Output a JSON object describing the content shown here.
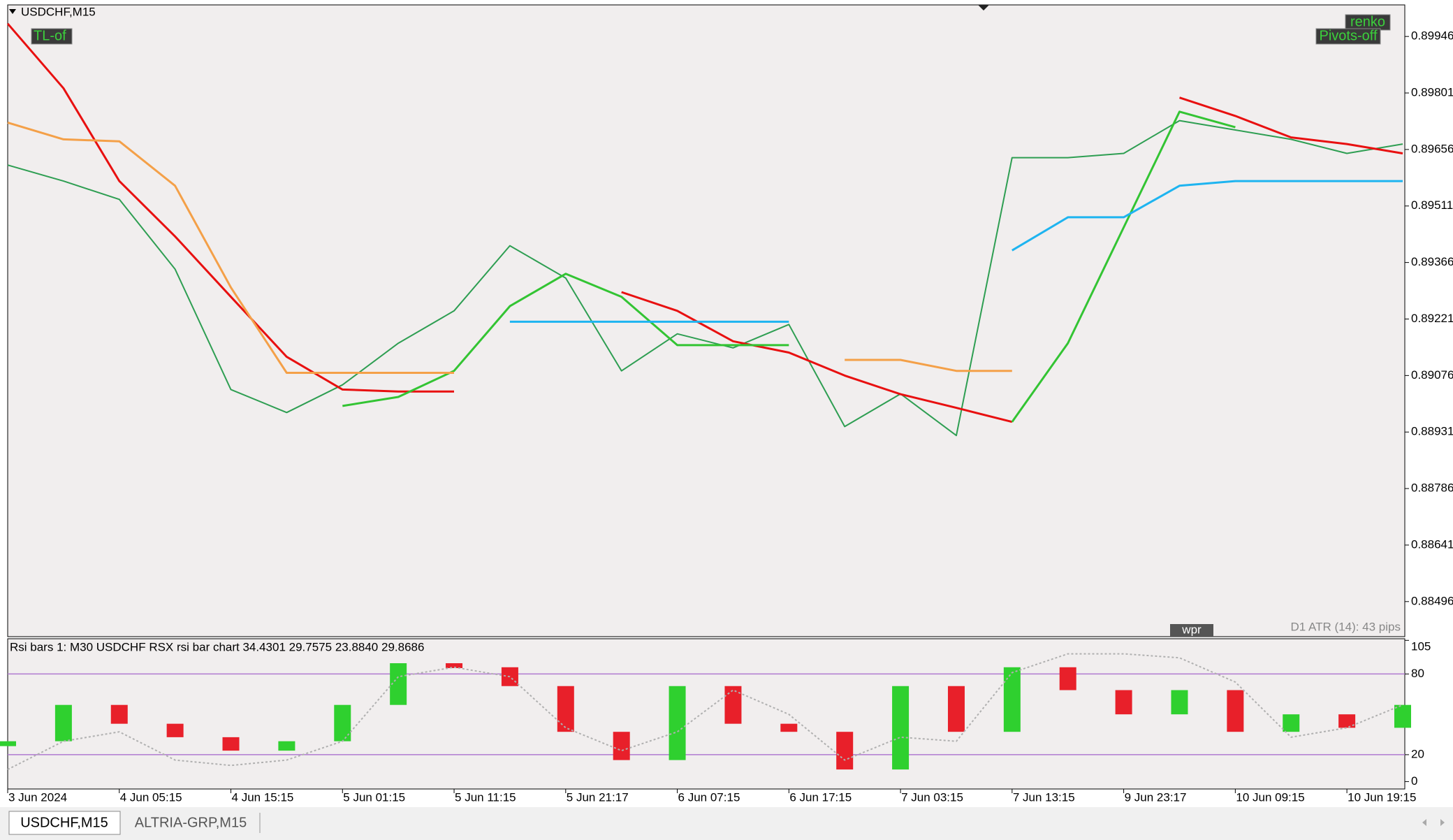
{
  "window": {
    "tabs": [
      "USDCHF,M15",
      "ALTRIA-GRP,M15"
    ],
    "buttons": {
      "tl": "TL-of",
      "renko": "renko",
      "pivots": "Pivots-off",
      "wpr": "wpr"
    },
    "atr": "D1 ATR (14): 43 pips"
  },
  "chart_data": [
    {
      "type": "line",
      "title": "USDCHF,M15",
      "series": [
        {
          "color": "#2e9e52",
          "values": [
            0.89616,
            0.89575,
            0.89528,
            0.89349,
            0.8904,
            0.88981,
            0.89052,
            0.89159,
            0.89242,
            0.89409,
            0.89326,
            0.89088,
            0.89183,
            0.89147,
            0.89207,
            0.88945,
            0.89029,
            0.88922,
            0.89635,
            0.89635,
            0.89646,
            0.8973,
            0.89706,
            0.89682,
            0.89646,
            0.8967
          ]
        },
        {
          "color": "#e81010",
          "values": [
            0.89979,
            0.89813,
            0.89575,
            0.89433,
            0.89278,
            0.89124,
            0.8904,
            0.89035,
            0.89035,
            null,
            null,
            0.8929,
            0.89242,
            0.89164,
            0.89135,
            0.89076,
            0.89028,
            0.88993,
            0.88957,
            null,
            null,
            0.89789,
            0.89742,
            0.89687,
            0.8967,
            0.89646
          ]
        },
        {
          "color": "#33c433",
          "values": [
            null,
            null,
            null,
            null,
            null,
            null,
            0.88998,
            0.89021,
            0.89088,
            0.89254,
            0.89337,
            0.89278,
            0.89154,
            0.89154,
            0.89154,
            null,
            null,
            null,
            0.88957,
            0.89159,
            0.89456,
            0.89753,
            0.89713,
            null,
            null,
            null
          ]
        },
        {
          "color": "#f4a048",
          "values": [
            0.89725,
            0.89682,
            0.89677,
            0.89563,
            0.89302,
            0.89083,
            0.89083,
            0.89083,
            0.89083,
            null,
            null,
            null,
            null,
            null,
            null,
            0.89116,
            0.89116,
            0.89088,
            0.89088,
            null,
            null,
            null,
            null,
            null,
            null,
            null
          ]
        },
        {
          "color": "#1eb4f0",
          "values": [
            null,
            null,
            null,
            null,
            null,
            null,
            null,
            null,
            null,
            0.89214,
            0.89214,
            0.89214,
            0.89214,
            0.89214,
            0.89214,
            null,
            null,
            null,
            0.89397,
            0.89482,
            0.89482,
            0.89563,
            0.89575,
            0.89575,
            0.89575,
            0.89575
          ]
        }
      ],
      "ylim": [
        0.88406,
        0.90027
      ],
      "yticks": [
        0.89946,
        0.89801,
        0.89656,
        0.89511,
        0.89366,
        0.89221,
        0.89076,
        0.88931,
        0.88786,
        0.88641,
        0.88496
      ],
      "grid": false
    },
    {
      "type": "bar",
      "title": "Rsi bars 1: M30 USDCHF RSX rsi bar chart 34.4301 29.7575 23.8840 29.8686",
      "categories": [
        "3 Jun 2024",
        null,
        "4 Jun 05:15",
        null,
        "4 Jun 15:15",
        null,
        "5 Jun 01:15",
        null,
        "5 Jun 11:15",
        null,
        "5 Jun 21:17",
        null,
        "6 Jun 07:15",
        null,
        "6 Jun 17:15",
        null,
        "7 Jun 03:15",
        null,
        "7 Jun 13:15",
        null,
        "9 Jun 23:17",
        null,
        "10 Jun 09:15",
        null,
        "10 Jun 19:15",
        null
      ],
      "series": [
        {
          "color": "#2fd02f",
          "down_color": "#e8202a",
          "values": [
            30,
            57,
            43,
            33,
            23,
            30,
            57,
            88,
            85,
            71,
            37,
            16,
            71,
            43,
            37,
            9,
            71,
            37,
            85,
            68,
            50,
            68,
            37,
            50,
            40,
            57
          ]
        },
        {
          "type": "line",
          "color": "#b0b0b0",
          "values": [
            9,
            30,
            37,
            16,
            12,
            16,
            30,
            78,
            85,
            78,
            40,
            23,
            37,
            68,
            50,
            16,
            33,
            30,
            81,
            95,
            95,
            92,
            74,
            33,
            40,
            57
          ]
        }
      ],
      "ylim": [
        -5.5,
        106.2
      ],
      "yticks": [
        105,
        80,
        20,
        0
      ],
      "levels": [
        80,
        20
      ],
      "level_color": "#b07ad0"
    }
  ]
}
